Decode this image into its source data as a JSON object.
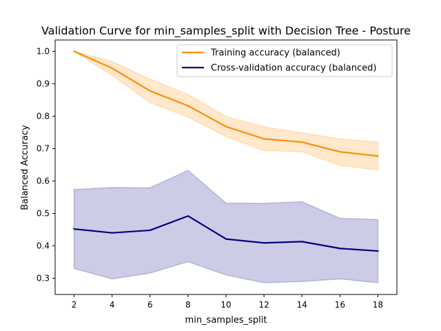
{
  "chart_data": {
    "type": "line",
    "title": "Validation Curve for min_samples_split with Decision Tree - Posture",
    "xlabel": "min_samples_split",
    "ylabel": "Balanced Accuracy",
    "x": [
      2,
      4,
      6,
      8,
      10,
      12,
      14,
      16,
      18
    ],
    "xlim": [
      1,
      19
    ],
    "ylim": [
      0.25,
      1.035
    ],
    "xticks": [
      2,
      4,
      6,
      8,
      10,
      12,
      14,
      16,
      18
    ],
    "yticks": [
      0.3,
      0.4,
      0.5,
      0.6,
      0.7,
      0.8,
      0.9,
      1.0
    ],
    "xtick_labels": [
      "2",
      "4",
      "6",
      "8",
      "10",
      "12",
      "14",
      "16",
      "18"
    ],
    "ytick_labels": [
      "0.3",
      "0.4",
      "0.5",
      "0.6",
      "0.7",
      "0.8",
      "0.9",
      "1.0"
    ],
    "grid": false,
    "legend_position": "top-right",
    "series": [
      {
        "name": "Training accuracy (balanced)",
        "color": "#ff8c00",
        "values": [
          1.0,
          0.948,
          0.878,
          0.832,
          0.768,
          0.73,
          0.72,
          0.69,
          0.677
        ],
        "band_lower": [
          1.0,
          0.926,
          0.842,
          0.797,
          0.737,
          0.694,
          0.69,
          0.648,
          0.634
        ],
        "band_upper": [
          1.0,
          0.969,
          0.914,
          0.867,
          0.799,
          0.767,
          0.749,
          0.73,
          0.72
        ]
      },
      {
        "name": "Cross-validation accuracy (balanced)",
        "color": "#000080",
        "values": [
          0.452,
          0.44,
          0.448,
          0.492,
          0.421,
          0.409,
          0.413,
          0.392,
          0.384
        ],
        "band_lower": [
          0.33,
          0.298,
          0.316,
          0.351,
          0.31,
          0.286,
          0.29,
          0.298,
          0.286
        ],
        "band_upper": [
          0.574,
          0.58,
          0.579,
          0.633,
          0.532,
          0.531,
          0.536,
          0.485,
          0.481
        ]
      }
    ]
  }
}
